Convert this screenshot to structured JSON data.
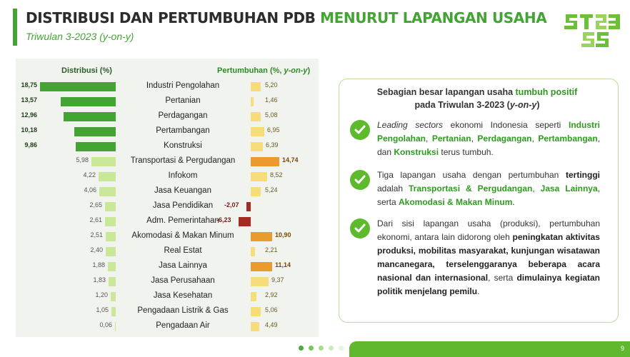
{
  "title": {
    "part1": "DISTRIBUSI DAN PERTUMBUHAN PDB",
    "part2": "MENURUT LAPANGAN USAHA"
  },
  "subtitle": "Triwulan 3-2023 (y-on-y)",
  "colors": {
    "accent": "#43a433",
    "dist_dark": "#43a433",
    "dist_light": "#c9e89a",
    "growth_light": "#f7dd7a",
    "growth_orange": "#eb9a2e",
    "growth_negative": "#a52a22"
  },
  "chart_data": {
    "type": "bar",
    "left_header": "Distribusi (%)",
    "right_header_main": "Pertumbuhan (%, ",
    "right_header_em": "y-on-y",
    "right_header_end": ")",
    "categories": [
      "Industri Pengolahan",
      "Pertanian",
      "Perdagangan",
      "Pertambangan",
      "Konstruksi",
      "Transportasi & Pergudangan",
      "Infokom",
      "Jasa Keuangan",
      "Jasa Pendidikan",
      "Adm. Pemerintahan",
      "Akomodasi & Makan Minum",
      "Real Estat",
      "Jasa Lainnya",
      "Jasa Perusahaan",
      "Jasa Kesehatan",
      "Pengadaan Listrik & Gas",
      "Pengadaan Air"
    ],
    "series": [
      {
        "name": "Distribusi (%)",
        "values": [
          18.75,
          13.57,
          12.96,
          10.18,
          9.86,
          5.98,
          4.22,
          4.06,
          2.65,
          2.61,
          2.51,
          2.4,
          1.88,
          1.83,
          1.2,
          1.05,
          0.06
        ],
        "labels": [
          "18,75",
          "13,57",
          "12,96",
          "10,18",
          "9,86",
          "5,98",
          "4,22",
          "4,06",
          "2,65",
          "2,61",
          "2,51",
          "2,40",
          "1,88",
          "1,83",
          "1,20",
          "1,05",
          "0,06"
        ]
      },
      {
        "name": "Pertumbuhan (%, y-on-y)",
        "values": [
          5.2,
          1.46,
          5.08,
          6.95,
          6.39,
          14.74,
          8.52,
          5.24,
          -2.07,
          -6.23,
          10.9,
          2.21,
          11.14,
          9.37,
          2.92,
          5.06,
          4.49
        ],
        "labels": [
          "5,20",
          "1,46",
          "5,08",
          "6,95",
          "6,39",
          "14,74",
          "8,52",
          "5,24",
          "-2,07",
          "-6,23",
          "10,90",
          "2,21",
          "11,14",
          "9,37",
          "2,92",
          "5,06",
          "4,49"
        ]
      }
    ]
  },
  "summary": {
    "title_pre": "Sebagian besar lapangan usaha ",
    "title_hl": "tumbuh positif",
    "title_l2": "pada Triwulan 3-2023 (",
    "title_em": "y-on-y",
    "title_end": ")",
    "item1": {
      "em": "Leading sectors",
      "t1": " ekonomi Indonesia seperti ",
      "s1": "Industri Pengolahan",
      "c1": ", ",
      "s2": "Pertanian",
      "c2": ", ",
      "s3": "Perdagangan",
      "c3": ", ",
      "s4": "Pertambangan",
      "c4": ", dan ",
      "s5": "Konstruksi",
      "t2": " terus tumbuh."
    },
    "item2": {
      "t1": "Tiga lapangan usaha dengan pertumbuhan ",
      "b1": "tertinggi",
      "t2": " adalah ",
      "s1": "Transportasi & Pergudangan",
      "c1": ", ",
      "s2": "Jasa Lainnya",
      "t3": ", serta ",
      "s3": "Akomodasi & Makan Minum",
      "t4": "."
    },
    "item3": {
      "t1": "Dari sisi lapangan usaha (produksi), pertumbuhan ekonomi, antara lain didorong oleh ",
      "b1": "peningkatan aktivitas produksi, mobilitas masyarakat, kunjungan wisatawan mancanegara, terselenggaranya beberapa acara nasional dan internasional",
      "t2": ", serta ",
      "b2": "dimulainya kegiatan politik menjelang pemilu",
      "t3": "."
    }
  },
  "page_number": "9"
}
